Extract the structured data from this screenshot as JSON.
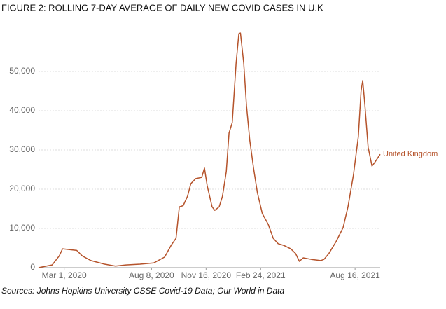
{
  "chart_data": {
    "type": "line",
    "title": "FIGURE 2: ROLLING 7-DAY AVERAGE OF DAILY NEW COVID CASES IN U.K",
    "source": "Sources: Johns Hopkins University CSSE Covid-19 Data; Our World in Data",
    "x": [
      "2020-01-14",
      "2020-02-08",
      "2020-02-21",
      "2020-02-27",
      "2020-03-11",
      "2020-03-24",
      "2020-04-03",
      "2020-04-19",
      "2020-05-14",
      "2020-06-03",
      "2020-06-22",
      "2020-07-18",
      "2020-08-12",
      "2020-09-01",
      "2020-09-13",
      "2020-09-22",
      "2020-09-28",
      "2020-10-05",
      "2020-10-13",
      "2020-10-19",
      "2020-10-28",
      "2020-11-08",
      "2020-11-13",
      "2020-11-18",
      "2020-11-27",
      "2020-12-02",
      "2020-12-10",
      "2020-12-16",
      "2020-12-23",
      "2020-12-28",
      "2021-01-03",
      "2021-01-10",
      "2021-01-15",
      "2021-01-18",
      "2021-01-24",
      "2021-01-29",
      "2021-02-04",
      "2021-02-11",
      "2021-02-18",
      "2021-02-27",
      "2021-03-10",
      "2021-03-19",
      "2021-03-28",
      "2021-04-07",
      "2021-04-20",
      "2021-04-29",
      "2021-05-06",
      "2021-05-13",
      "2021-05-28",
      "2021-06-14",
      "2021-06-20",
      "2021-06-29",
      "2021-07-12",
      "2021-07-25",
      "2021-08-03",
      "2021-08-13",
      "2021-08-22",
      "2021-08-27",
      "2021-08-30",
      "2021-09-03",
      "2021-09-09",
      "2021-09-16",
      "2021-09-21",
      "2021-10-01"
    ],
    "series": [
      {
        "name": "United Kingdom",
        "color": "#b5532b",
        "values": [
          0,
          700,
          3000,
          4800,
          4600,
          4400,
          3000,
          1800,
          900,
          400,
          700,
          900,
          1200,
          2700,
          5700,
          7500,
          15500,
          15800,
          18200,
          21400,
          22700,
          23000,
          25400,
          20900,
          15500,
          14600,
          15500,
          18200,
          24500,
          34300,
          37000,
          52100,
          59600,
          59800,
          52100,
          41400,
          32500,
          25400,
          19100,
          13800,
          11000,
          7500,
          6100,
          5700,
          4800,
          3600,
          1600,
          2500,
          2100,
          1800,
          2100,
          3600,
          6600,
          10200,
          15500,
          23600,
          33400,
          45000,
          47700,
          41400,
          30700,
          25900,
          26800,
          28900
        ]
      }
    ],
    "xlim": [
      "2020-01-14",
      "2021-10-01"
    ],
    "xticks": [
      {
        "value": "2020-03-01",
        "label": "Mar 1, 2020"
      },
      {
        "value": "2020-08-08",
        "label": "Aug 8, 2020"
      },
      {
        "value": "2020-11-16",
        "label": "Nov 16, 2020"
      },
      {
        "value": "2021-02-24",
        "label": "Feb 24, 2021"
      },
      {
        "value": "2021-08-16",
        "label": "Aug 16, 2021"
      }
    ],
    "ylim": [
      0,
      60000
    ],
    "yticks": [
      0,
      {
        "value": 10000,
        "label": "10,000"
      },
      {
        "value": 20000,
        "label": "20,000"
      },
      {
        "value": 30000,
        "label": "30,000"
      },
      {
        "value": 40000,
        "label": "40,000"
      },
      {
        "value": 50000,
        "label": "50,000"
      }
    ],
    "grid": true
  }
}
